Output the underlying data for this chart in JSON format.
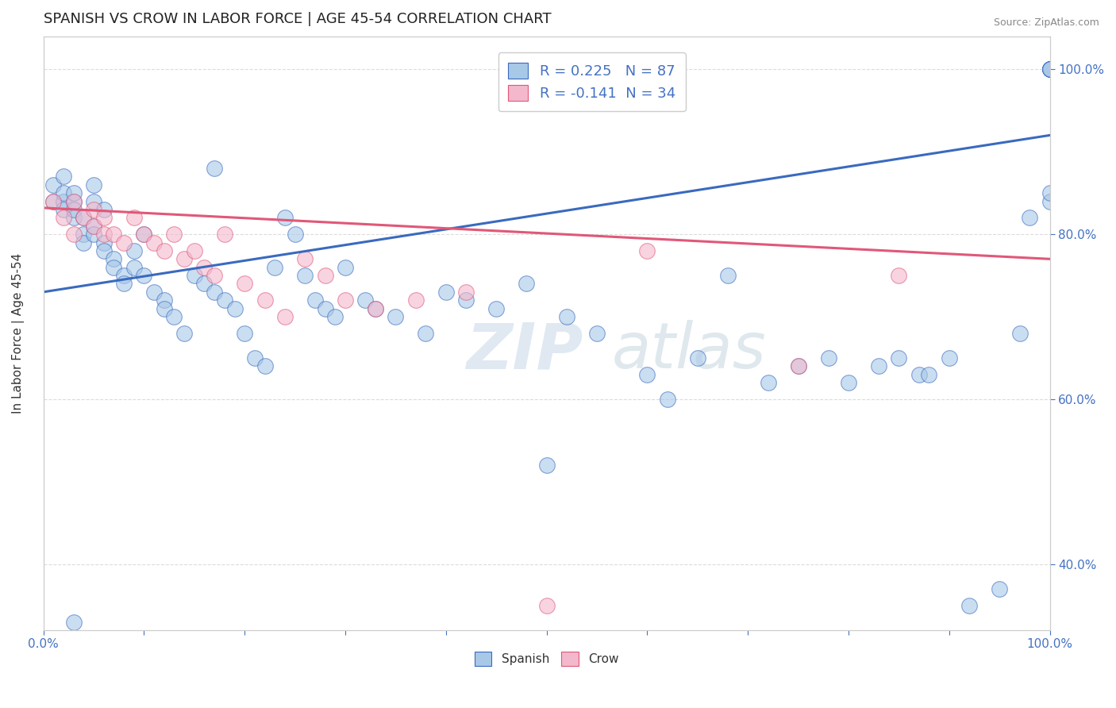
{
  "title": "SPANISH VS CROW IN LABOR FORCE | AGE 45-54 CORRELATION CHART",
  "source_text": "Source: ZipAtlas.com",
  "ylabel": "In Labor Force | Age 45-54",
  "xlim": [
    0.0,
    1.0
  ],
  "ylim": [
    0.32,
    1.04
  ],
  "color_spanish": "#a8c8e8",
  "color_crow": "#f4b8cc",
  "trendline_spanish_color": "#3a6abf",
  "trendline_crow_color": "#e05878",
  "watermark_zip": "ZIP",
  "watermark_atlas": "atlas",
  "legend_label1": "R = 0.225   N = 87",
  "legend_label2": "R = -0.141  N = 34",
  "spanish_x": [
    0.01,
    0.01,
    0.02,
    0.02,
    0.02,
    0.02,
    0.03,
    0.03,
    0.03,
    0.03,
    0.04,
    0.04,
    0.04,
    0.05,
    0.05,
    0.05,
    0.05,
    0.06,
    0.06,
    0.06,
    0.07,
    0.07,
    0.08,
    0.08,
    0.09,
    0.09,
    0.1,
    0.1,
    0.11,
    0.12,
    0.12,
    0.13,
    0.14,
    0.15,
    0.16,
    0.17,
    0.17,
    0.18,
    0.19,
    0.2,
    0.21,
    0.22,
    0.23,
    0.24,
    0.25,
    0.26,
    0.27,
    0.28,
    0.29,
    0.3,
    0.32,
    0.33,
    0.35,
    0.38,
    0.4,
    0.42,
    0.45,
    0.48,
    0.5,
    0.52,
    0.55,
    0.6,
    0.62,
    0.65,
    0.68,
    0.72,
    0.75,
    0.78,
    0.8,
    0.83,
    0.85,
    0.87,
    0.88,
    0.9,
    0.92,
    0.95,
    0.97,
    0.98,
    1.0,
    1.0,
    0.03,
    1.0,
    1.0,
    1.0,
    1.0,
    1.0,
    1.0
  ],
  "spanish_y": [
    0.84,
    0.86,
    0.84,
    0.83,
    0.85,
    0.87,
    0.82,
    0.84,
    0.83,
    0.85,
    0.8,
    0.82,
    0.79,
    0.81,
    0.8,
    0.84,
    0.86,
    0.83,
    0.79,
    0.78,
    0.77,
    0.76,
    0.75,
    0.74,
    0.78,
    0.76,
    0.8,
    0.75,
    0.73,
    0.72,
    0.71,
    0.7,
    0.68,
    0.75,
    0.74,
    0.73,
    0.88,
    0.72,
    0.71,
    0.68,
    0.65,
    0.64,
    0.76,
    0.82,
    0.8,
    0.75,
    0.72,
    0.71,
    0.7,
    0.76,
    0.72,
    0.71,
    0.7,
    0.68,
    0.73,
    0.72,
    0.71,
    0.74,
    0.52,
    0.7,
    0.68,
    0.63,
    0.6,
    0.65,
    0.75,
    0.62,
    0.64,
    0.65,
    0.62,
    0.64,
    0.65,
    0.63,
    0.63,
    0.65,
    0.35,
    0.37,
    0.68,
    0.82,
    0.84,
    0.85,
    0.33,
    1.0,
    1.0,
    1.0,
    1.0,
    1.0,
    1.0
  ],
  "crow_x": [
    0.01,
    0.02,
    0.03,
    0.03,
    0.04,
    0.05,
    0.05,
    0.06,
    0.06,
    0.07,
    0.08,
    0.09,
    0.1,
    0.11,
    0.12,
    0.13,
    0.14,
    0.15,
    0.16,
    0.17,
    0.18,
    0.2,
    0.22,
    0.24,
    0.26,
    0.28,
    0.3,
    0.33,
    0.37,
    0.42,
    0.5,
    0.6,
    0.75,
    0.85
  ],
  "crow_y": [
    0.84,
    0.82,
    0.84,
    0.8,
    0.82,
    0.83,
    0.81,
    0.8,
    0.82,
    0.8,
    0.79,
    0.82,
    0.8,
    0.79,
    0.78,
    0.8,
    0.77,
    0.78,
    0.76,
    0.75,
    0.8,
    0.74,
    0.72,
    0.7,
    0.77,
    0.75,
    0.72,
    0.71,
    0.72,
    0.73,
    0.35,
    0.78,
    0.64,
    0.75
  ]
}
